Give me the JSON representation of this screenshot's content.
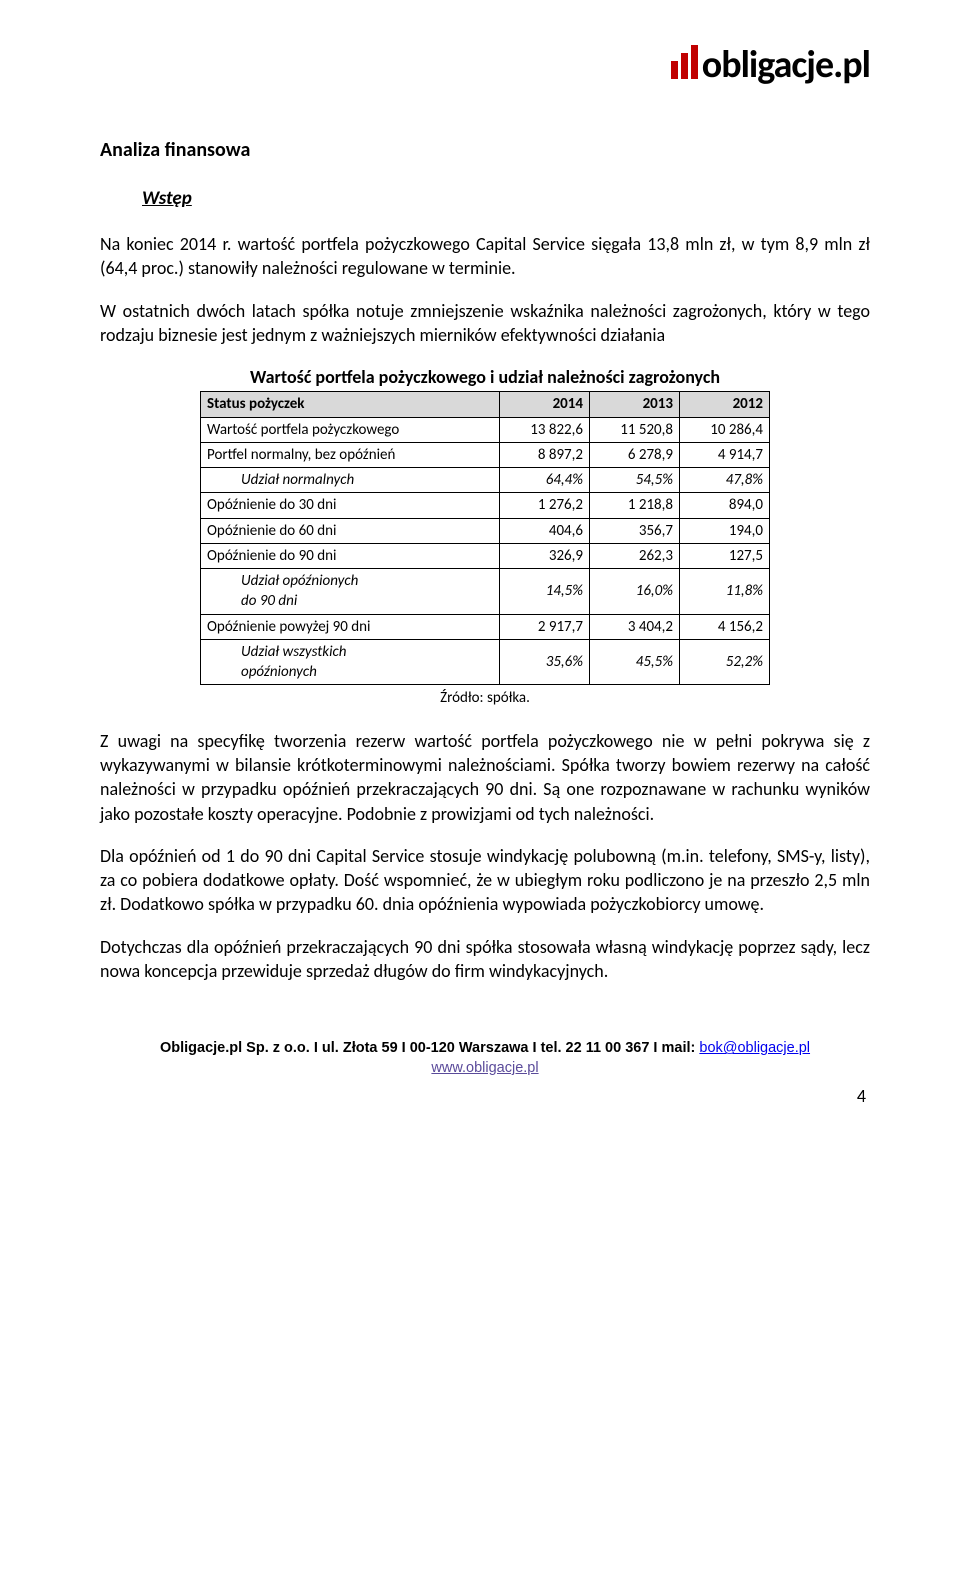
{
  "logo": {
    "text": "obligacje.pl"
  },
  "heading": "Analiza finansowa",
  "subheading": "Wstęp",
  "para1": "Na koniec 2014 r. wartość portfela pożyczkowego Capital Service sięgała 13,8 mln zł, w tym 8,9 mln zł (64,4 proc.) stanowiły należności regulowane w terminie.",
  "para2": "W ostatnich dwóch latach spółka notuje zmniejszenie wskaźnika należności zagrożonych, który w tego rodzaju biznesie jest jednym z ważniejszych mierników efektywności działania",
  "table": {
    "title": "Wartość portfela pożyczkowego i udział należności zagrożonych",
    "header_bg": "#d9d9d9",
    "border_color": "#000000",
    "col_header": "Status pożyczek",
    "years": [
      "2014",
      "2013",
      "2012"
    ],
    "rows": [
      {
        "label": "Wartość portfela pożyczkowego",
        "vals": [
          "13 822,6",
          "11 520,8",
          "10 286,4"
        ],
        "italic": false,
        "indent": false
      },
      {
        "label": "Portfel normalny, bez opóźnień",
        "vals": [
          "8 897,2",
          "6 278,9",
          "4 914,7"
        ],
        "italic": false,
        "indent": false
      },
      {
        "label": "Udział normalnych",
        "vals": [
          "64,4%",
          "54,5%",
          "47,8%"
        ],
        "italic": true,
        "indent": true
      },
      {
        "label": "Opóźnienie do 30 dni",
        "vals": [
          "1 276,2",
          "1 218,8",
          "894,0"
        ],
        "italic": false,
        "indent": false
      },
      {
        "label": "Opóźnienie do 60 dni",
        "vals": [
          "404,6",
          "356,7",
          "194,0"
        ],
        "italic": false,
        "indent": false
      },
      {
        "label": "Opóźnienie do 90 dni",
        "vals": [
          "326,9",
          "262,3",
          "127,5"
        ],
        "italic": false,
        "indent": false
      },
      {
        "label": "Udział opóźnionych<br>do 90 dni",
        "vals": [
          "14,5%",
          "16,0%",
          "11,8%"
        ],
        "italic": true,
        "indent": true
      },
      {
        "label": "Opóźnienie powyżej 90 dni",
        "vals": [
          "2 917,7",
          "3 404,2",
          "4 156,2"
        ],
        "italic": false,
        "indent": false
      },
      {
        "label": "Udział wszystkich<br>opóźnionych",
        "vals": [
          "35,6%",
          "45,5%",
          "52,2%"
        ],
        "italic": true,
        "indent": true
      }
    ],
    "source": "Źródło: spółka."
  },
  "para3": "Z uwagi na specyfikę tworzenia rezerw wartość portfela pożyczkowego nie w pełni pokrywa się z wykazywanymi w bilansie krótkoterminowymi należnościami. Spółka tworzy bowiem rezerwy na całość należności w przypadku opóźnień przekraczających 90 dni. Są one rozpoznawane w rachunku wyników jako pozostałe koszty operacyjne. Podobnie z prowizjami od tych należności.",
  "para4": "Dla opóźnień od 1 do 90 dni Capital Service stosuje windykację polubowną (m.in. telefony, SMS-y, listy), za co pobiera dodatkowe opłaty. Dość wspomnieć, że w ubiegłym roku podliczono je na przeszło 2,5 mln zł. Dodatkowo spółka w przypadku 60. dnia opóźnienia wypowiada pożyczkobiorcy umowę.",
  "para5": "Dotychczas dla opóźnień przekraczających 90 dni spółka stosowała własną windykację poprzez sądy, lecz nowa koncepcja przewiduje sprzedaż długów do firm windykacyjnych.",
  "footer": {
    "line1a": "Obligacje.pl Sp. z o.o.  I  ul. Złota 59  I  00-120 Warszawa  I  tel. 22 11 00 367  I  mail: ",
    "mail": "bok@obligacje.pl",
    "site": "www.obligacje.pl"
  },
  "page_number": "4"
}
